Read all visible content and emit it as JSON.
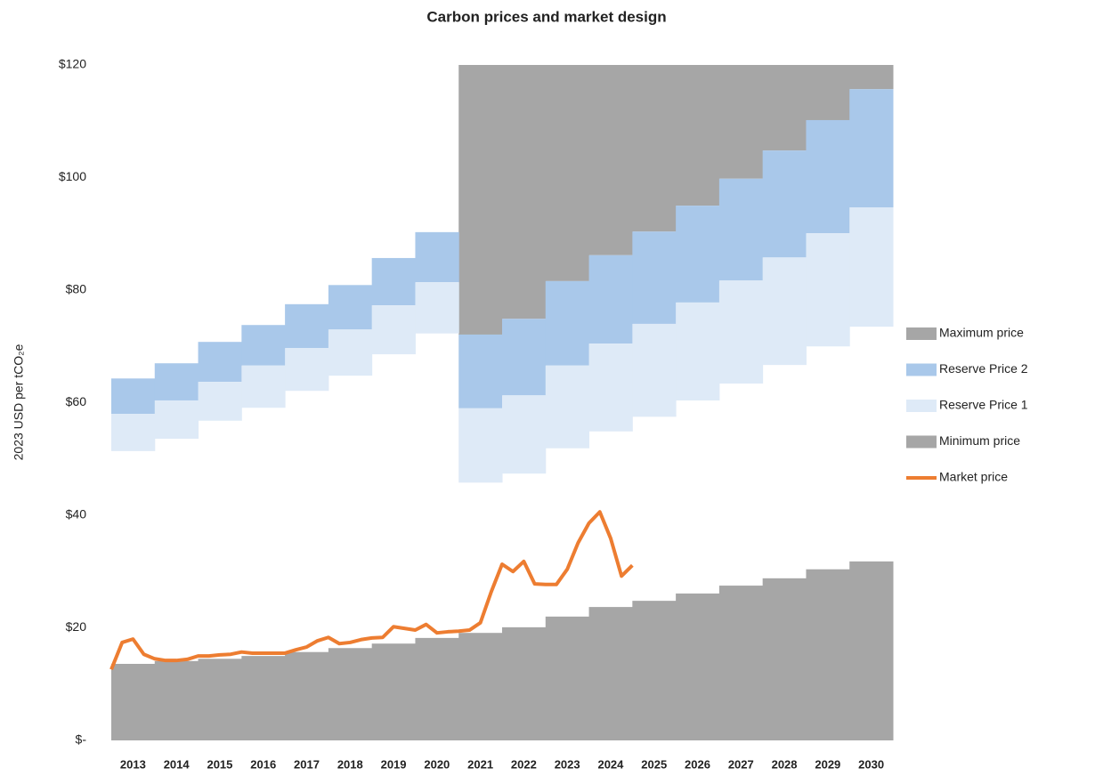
{
  "chart_data": {
    "type": "stepped-area",
    "title": "Carbon prices and market design",
    "y_label": "2023 USD per tCO₂e",
    "categories": [
      "2013",
      "2014",
      "2015",
      "2016",
      "2017",
      "2018",
      "2019",
      "2020",
      "2021",
      "2022",
      "2023",
      "2024",
      "2025",
      "2026",
      "2027",
      "2028",
      "2029",
      "2030"
    ],
    "ylim": [
      0,
      120
    ],
    "yticks": [
      {
        "value": 0,
        "label": "$-"
      },
      {
        "value": 20,
        "label": "$20"
      },
      {
        "value": 40,
        "label": "$40"
      },
      {
        "value": 60,
        "label": "$60"
      },
      {
        "value": 80,
        "label": "$80"
      },
      {
        "value": 100,
        "label": "$100"
      },
      {
        "value": 120,
        "label": "$120"
      }
    ],
    "grid": false,
    "legend": "right",
    "series": [
      {
        "name": "Maximum price",
        "color": "#a6a6a6",
        "values": [
          null,
          null,
          null,
          null,
          null,
          null,
          null,
          null,
          [
            72.1,
            120
          ],
          [
            74.9,
            120
          ],
          [
            81.6,
            120
          ],
          [
            86.2,
            120
          ],
          [
            90.4,
            120
          ],
          [
            95.0,
            120
          ],
          [
            99.8,
            120
          ],
          [
            104.8,
            120
          ],
          [
            110.2,
            120
          ],
          [
            115.7,
            120
          ]
        ]
      },
      {
        "name": "Reserve Price 2",
        "color": "#a9c8ea",
        "values": [
          [
            58.0,
            64.3
          ],
          [
            60.4,
            67.0
          ],
          [
            63.7,
            70.8
          ],
          [
            66.6,
            73.8
          ],
          [
            69.7,
            77.5
          ],
          [
            73.0,
            80.9
          ],
          [
            77.3,
            85.7
          ],
          [
            81.4,
            90.3
          ],
          [
            59.0,
            72.1
          ],
          [
            61.3,
            74.9
          ],
          [
            66.6,
            81.6
          ],
          [
            70.5,
            86.2
          ],
          [
            74.0,
            90.4
          ],
          [
            77.8,
            95.0
          ],
          [
            81.7,
            99.8
          ],
          [
            85.8,
            104.8
          ],
          [
            90.1,
            110.2
          ],
          [
            94.7,
            115.7
          ]
        ]
      },
      {
        "name": "Reserve Price 1",
        "color": "#deeaf7",
        "values": [
          [
            51.4,
            58.0
          ],
          [
            53.6,
            60.4
          ],
          [
            56.8,
            63.7
          ],
          [
            59.1,
            66.6
          ],
          [
            62.1,
            69.7
          ],
          [
            64.8,
            73.0
          ],
          [
            68.6,
            77.3
          ],
          [
            72.3,
            81.4
          ],
          [
            45.8,
            59.0
          ],
          [
            47.4,
            61.3
          ],
          [
            51.9,
            66.6
          ],
          [
            54.9,
            70.5
          ],
          [
            57.5,
            74.0
          ],
          [
            60.4,
            77.8
          ],
          [
            63.4,
            81.7
          ],
          [
            66.7,
            85.8
          ],
          [
            70.0,
            90.1
          ],
          [
            73.5,
            94.7
          ]
        ]
      },
      {
        "name": "Minimum price",
        "color": "#a6a6a6",
        "values": [
          13.6,
          14.1,
          14.5,
          15.0,
          15.7,
          16.4,
          17.2,
          18.2,
          19.1,
          20.1,
          22.0,
          23.7,
          24.8,
          26.1,
          27.5,
          28.8,
          30.4,
          31.8
        ]
      },
      {
        "name": "Market price",
        "color": "#ed7d31",
        "type": "line",
        "x": [
          2013,
          2013.25,
          2013.5,
          2013.75,
          2014,
          2014.25,
          2014.5,
          2014.75,
          2015,
          2015.25,
          2015.5,
          2015.75,
          2016,
          2016.25,
          2016.5,
          2016.75,
          2017,
          2017.25,
          2017.5,
          2017.75,
          2018,
          2018.25,
          2018.5,
          2018.75,
          2019,
          2019.25,
          2019.5,
          2019.75,
          2020,
          2020.25,
          2020.5,
          2020.75,
          2021,
          2021.25,
          2021.5,
          2021.75,
          2022,
          2022.25,
          2022.5,
          2022.75,
          2023,
          2023.25,
          2023.5,
          2023.75,
          2024,
          2024.25,
          2024.5,
          2024.75,
          2025
        ],
        "values": [
          12.6,
          17.4,
          18.0,
          15.3,
          14.5,
          14.2,
          14.2,
          14.4,
          15.0,
          15.0,
          15.2,
          15.3,
          15.7,
          15.5,
          15.5,
          15.5,
          15.5,
          16.1,
          16.6,
          17.7,
          18.3,
          17.2,
          17.4,
          17.9,
          18.2,
          18.3,
          20.2,
          19.9,
          19.6,
          20.6,
          19.1,
          19.3,
          19.4,
          19.6,
          20.9,
          26.4,
          31.3,
          30.0,
          31.8,
          27.8,
          27.7,
          27.7,
          30.4,
          35.1,
          38.6,
          40.6,
          35.9,
          29.2,
          31.1
        ]
      }
    ]
  }
}
